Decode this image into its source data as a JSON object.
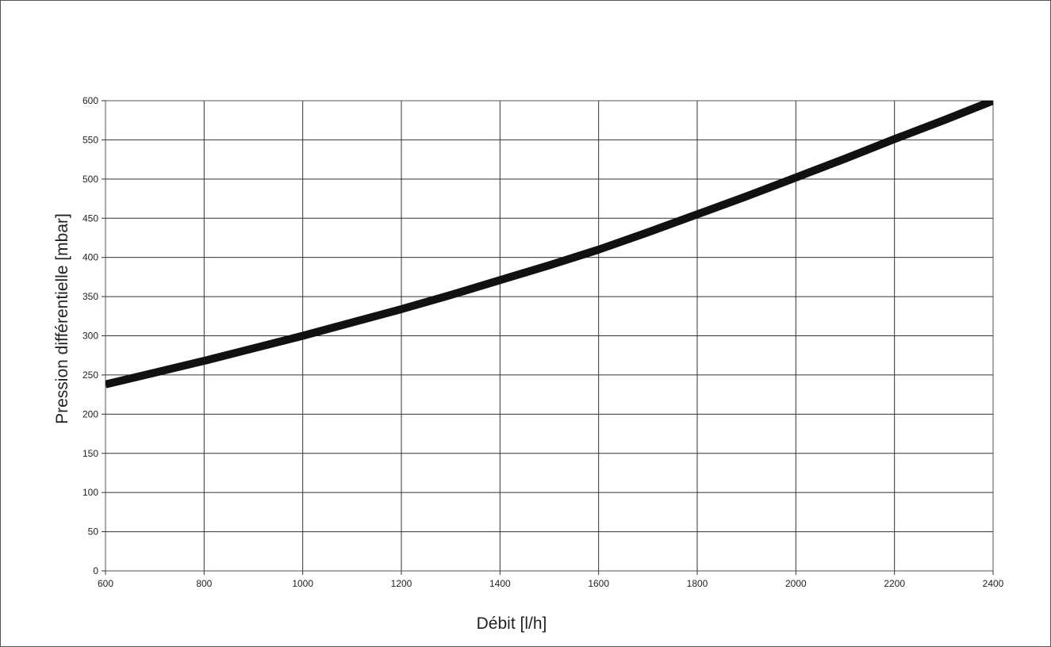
{
  "chart_data": {
    "type": "line",
    "title": "",
    "xlabel": "Débit [l/h]",
    "ylabel": "Pression différentielle [mbar]",
    "xlim": [
      600,
      2400
    ],
    "ylim": [
      0,
      600
    ],
    "x_ticks": [
      600,
      800,
      1000,
      1200,
      1400,
      1600,
      1800,
      2000,
      2200,
      2400
    ],
    "y_ticks": [
      0,
      50,
      100,
      150,
      200,
      250,
      300,
      350,
      400,
      450,
      500,
      550,
      600
    ],
    "grid": true,
    "legend": "none",
    "series": [
      {
        "color": "#111111",
        "x": [
          600,
          700,
          800,
          900,
          1000,
          1100,
          1200,
          1300,
          1400,
          1500,
          1600,
          1700,
          1800,
          1900,
          2000,
          2100,
          2200,
          2300,
          2400
        ],
        "y": [
          238,
          253,
          268,
          284,
          300,
          317,
          334,
          352,
          371,
          390,
          410,
          432,
          455,
          478,
          502,
          526,
          551,
          575,
          600
        ]
      }
    ]
  }
}
